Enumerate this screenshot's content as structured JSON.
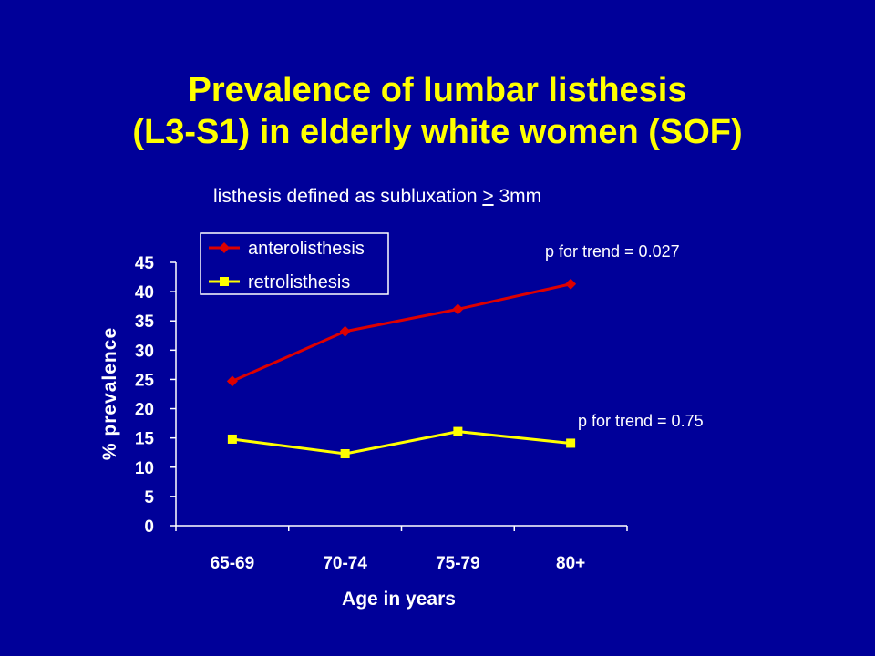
{
  "slide": {
    "title_line1": "Prevalence of lumbar listhesis",
    "title_line2": "(L3-S1) in elderly white women (SOF)",
    "subtitle_pre": "listhesis defined as subluxation ",
    "subtitle_op": ">",
    "subtitle_post": " 3mm",
    "background": "#000099",
    "title_color": "#FFFF00"
  },
  "chart_data": {
    "type": "line",
    "categories": [
      "65-69",
      "70-74",
      "75-79",
      "80+"
    ],
    "series": [
      {
        "name": "anterolisthesis",
        "values": [
          24.7,
          33.2,
          37.0,
          41.3
        ],
        "color": "#DD0000",
        "marker": "diamond"
      },
      {
        "name": "retrolisthesis",
        "values": [
          14.8,
          12.3,
          16.1,
          14.1
        ],
        "color": "#FFFF00",
        "marker": "square"
      }
    ],
    "xlabel": "Age in years",
    "ylabel": "% prevalence",
    "ylim": [
      0,
      45
    ],
    "yticks": [
      0,
      5,
      10,
      15,
      20,
      25,
      30,
      35,
      40,
      45
    ],
    "grid": false,
    "legend_position": "top-left",
    "annotations": [
      {
        "text": "p for trend = 0.027",
        "series": "anterolisthesis"
      },
      {
        "text": "p for trend = 0.75",
        "series": "retrolisthesis"
      }
    ]
  }
}
